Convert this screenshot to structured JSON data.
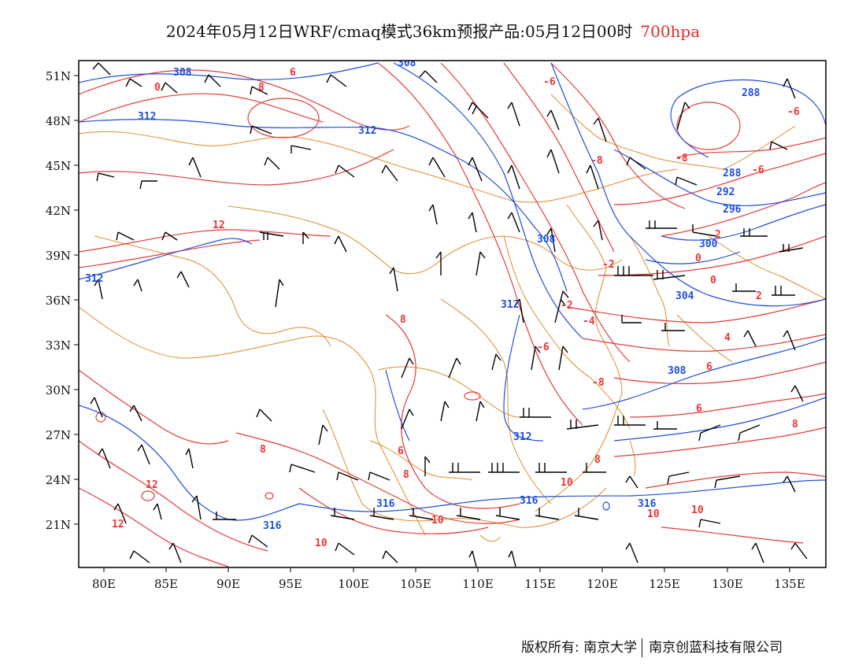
{
  "title": {
    "main": "2024年05月12日WRF/cmaq模式36km预报产品:05月12日00时",
    "level": "700hpa"
  },
  "axes": {
    "lat_ticks": [
      "51N",
      "48N",
      "45N",
      "42N",
      "39N",
      "36N",
      "33N",
      "30N",
      "27N",
      "24N",
      "21N"
    ],
    "lon_ticks": [
      "80E",
      "85E",
      "90E",
      "95E",
      "100E",
      "105E",
      "110E",
      "115E",
      "120E",
      "125E",
      "130E",
      "135E"
    ]
  },
  "colors": {
    "temperature": "#e33b3b",
    "height": "#1e4fdc",
    "boundary": "#e08a2c",
    "wind": "#000000"
  },
  "contour_labels": {
    "temperature": [
      "0",
      "8",
      "6",
      "-6",
      "-8",
      "-6",
      "-8",
      "-6",
      "12",
      "-2",
      "0",
      "0",
      "-2",
      "-4",
      "2",
      "4",
      "8",
      "-6",
      "6",
      "6",
      "8",
      "8",
      "8",
      "6",
      "12",
      "12",
      "10",
      "10",
      "10",
      "10",
      "10",
      "8",
      "-8",
      "2"
    ],
    "height": [
      "308",
      "308",
      "312",
      "312",
      "288",
      "288",
      "292",
      "296",
      "300",
      "308",
      "312",
      "304",
      "308",
      "312",
      "312",
      "316",
      "316",
      "316",
      "316"
    ]
  },
  "footer": {
    "left": "版权所有: 南京大学",
    "right": "南京创蓝科技有限公司"
  }
}
